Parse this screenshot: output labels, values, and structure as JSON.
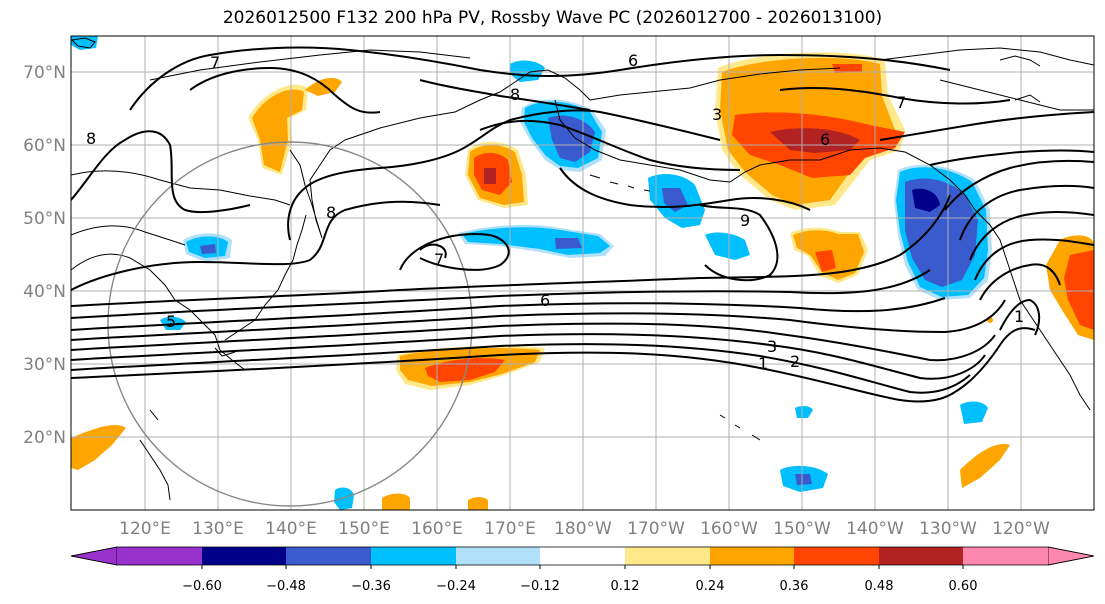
{
  "title": "2026012500 F132 200 hPa PV, Rossby Wave PC (2026012700 - 2026013100)",
  "lat_labels": [
    "70°N",
    "60°N",
    "50°N",
    "40°N",
    "30°N",
    "20°N"
  ],
  "lon_labels": [
    "120°E",
    "130°E",
    "140°E",
    "150°E",
    "160°E",
    "170°E",
    "180°W",
    "170°W",
    "160°W",
    "150°W",
    "140°W",
    "130°W",
    "120°W"
  ],
  "contour_labels": [
    "6",
    "7",
    "8",
    "9",
    "7",
    "6",
    "5",
    "3",
    "2",
    "1",
    "1",
    "6",
    "8",
    "8",
    "7",
    "3"
  ],
  "colorbar": {
    "ticks": [
      "−0.60",
      "−0.48",
      "−0.36",
      "−0.24",
      "−0.12",
      "0.12",
      "0.24",
      "0.36",
      "0.48",
      "0.60"
    ],
    "colors": [
      "#9932cc",
      "#00008b",
      "#3a5bcd",
      "#00bfff",
      "#b0e0fa",
      "#ffffff",
      "#ffe88a",
      "#ffa500",
      "#ff4500",
      "#b22222",
      "#ff88b0"
    ]
  },
  "colors": {
    "positive_strong": "#ff4500",
    "positive": "#ffa500",
    "positive_weak": "#ffe88a",
    "positive_peak": "#b22222",
    "negative_weak": "#b0e0fa",
    "negative": "#00bfff",
    "negative_strong": "#3a5bcd",
    "negative_peak": "#00008b"
  }
}
